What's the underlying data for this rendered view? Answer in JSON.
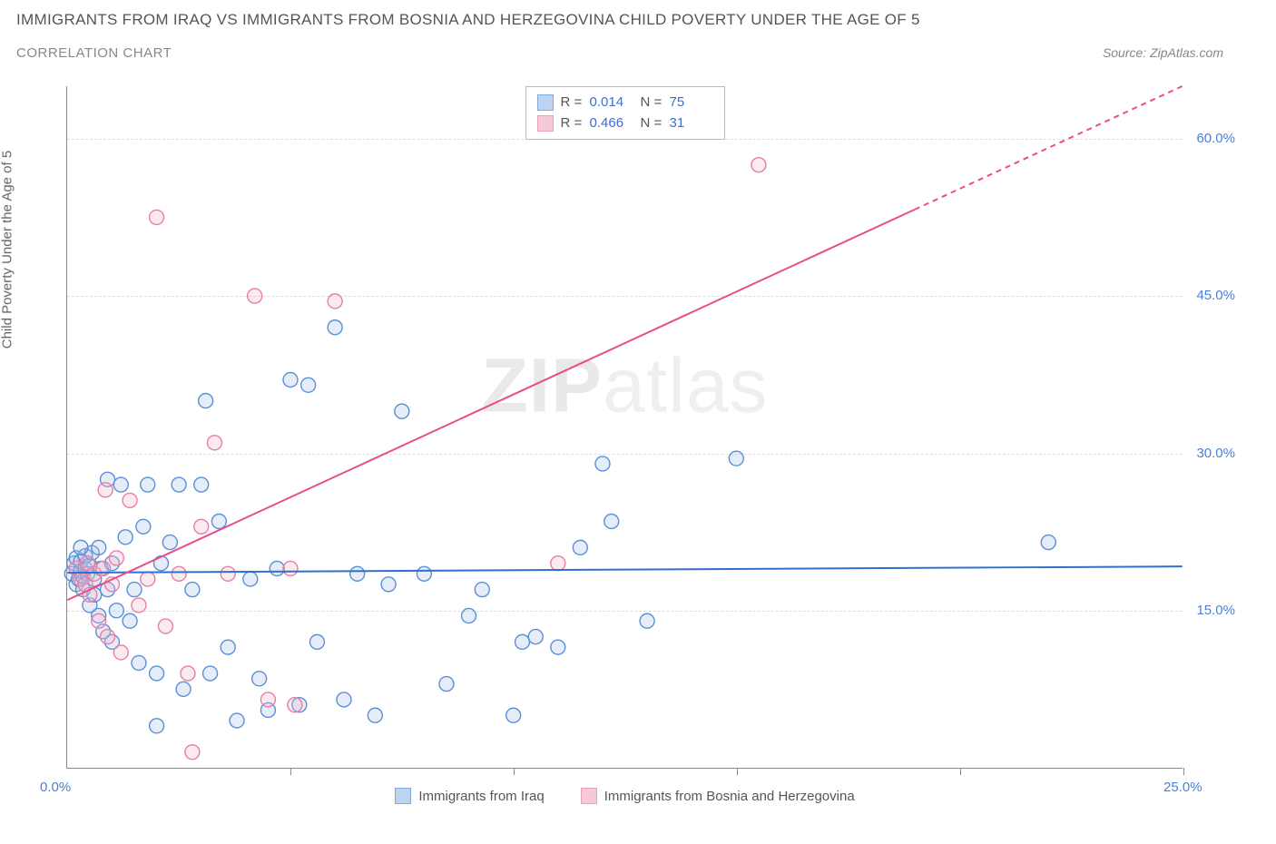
{
  "title": "IMMIGRANTS FROM IRAQ VS IMMIGRANTS FROM BOSNIA AND HERZEGOVINA CHILD POVERTY UNDER THE AGE OF 5",
  "subtitle": "CORRELATION CHART",
  "source_label": "Source:",
  "source_name": "ZipAtlas.com",
  "y_axis_label": "Child Poverty Under the Age of 5",
  "watermark_bold": "ZIP",
  "watermark_light": "atlas",
  "chart": {
    "type": "scatter",
    "xlim": [
      0,
      25
    ],
    "ylim": [
      0,
      65
    ],
    "x_ticks": [
      0,
      5,
      10,
      15,
      20,
      25
    ],
    "x_tick_labels": {
      "0": "0.0%",
      "25": "25.0%"
    },
    "y_gridlines": [
      15,
      30,
      45,
      60
    ],
    "y_tick_labels": [
      "15.0%",
      "30.0%",
      "45.0%",
      "60.0%"
    ],
    "background_color": "#ffffff",
    "grid_color": "#dddddd",
    "axis_color": "#888888",
    "tick_label_color": "#4a7fd8",
    "marker_radius": 8,
    "marker_stroke_width": 1.4,
    "marker_fill_opacity": 0.3,
    "trend_line_width": 2,
    "series": [
      {
        "key": "iraq",
        "label": "Immigrants from Iraq",
        "stroke": "#5b8fd6",
        "fill": "#a9c5ea",
        "line_color": "#2e6fd1",
        "R_label": "R =",
        "R": "0.014",
        "N_label": "N =",
        "N": "75",
        "trend": {
          "x1": 0,
          "y1": 18.6,
          "x2": 25,
          "y2": 19.2
        },
        "points": [
          [
            0.1,
            18.5
          ],
          [
            0.15,
            19.5
          ],
          [
            0.2,
            17.5
          ],
          [
            0.2,
            20.0
          ],
          [
            0.25,
            18.0
          ],
          [
            0.3,
            18.8
          ],
          [
            0.3,
            19.7
          ],
          [
            0.35,
            18.2
          ],
          [
            0.35,
            17.0
          ],
          [
            0.4,
            19.0
          ],
          [
            0.4,
            20.2
          ],
          [
            0.45,
            18.5
          ],
          [
            0.5,
            19.3
          ],
          [
            0.5,
            15.5
          ],
          [
            0.55,
            20.5
          ],
          [
            0.6,
            18.0
          ],
          [
            0.6,
            16.5
          ],
          [
            0.7,
            14.5
          ],
          [
            0.75,
            19.0
          ],
          [
            0.8,
            13.0
          ],
          [
            0.9,
            17.0
          ],
          [
            0.9,
            27.5
          ],
          [
            1.0,
            12.0
          ],
          [
            1.0,
            19.5
          ],
          [
            1.1,
            15.0
          ],
          [
            1.2,
            27.0
          ],
          [
            1.3,
            22.0
          ],
          [
            1.4,
            14.0
          ],
          [
            1.5,
            17.0
          ],
          [
            1.6,
            10.0
          ],
          [
            1.7,
            23.0
          ],
          [
            1.8,
            27.0
          ],
          [
            2.0,
            4.0
          ],
          [
            2.0,
            9.0
          ],
          [
            2.1,
            19.5
          ],
          [
            2.3,
            21.5
          ],
          [
            2.5,
            27.0
          ],
          [
            2.6,
            7.5
          ],
          [
            2.8,
            17.0
          ],
          [
            3.0,
            27.0
          ],
          [
            3.1,
            35.0
          ],
          [
            3.2,
            9.0
          ],
          [
            3.4,
            23.5
          ],
          [
            3.6,
            11.5
          ],
          [
            3.8,
            4.5
          ],
          [
            4.1,
            18.0
          ],
          [
            4.3,
            8.5
          ],
          [
            4.5,
            5.5
          ],
          [
            4.7,
            19.0
          ],
          [
            5.0,
            37.0
          ],
          [
            5.2,
            6.0
          ],
          [
            5.4,
            36.5
          ],
          [
            5.6,
            12.0
          ],
          [
            6.0,
            42.0
          ],
          [
            6.2,
            6.5
          ],
          [
            6.5,
            18.5
          ],
          [
            6.9,
            5.0
          ],
          [
            7.2,
            17.5
          ],
          [
            7.5,
            34.0
          ],
          [
            8.0,
            18.5
          ],
          [
            8.5,
            8.0
          ],
          [
            9.0,
            14.5
          ],
          [
            9.3,
            17.0
          ],
          [
            10.0,
            5.0
          ],
          [
            10.2,
            12.0
          ],
          [
            10.5,
            12.5
          ],
          [
            11.0,
            11.5
          ],
          [
            11.5,
            21.0
          ],
          [
            12.0,
            29.0
          ],
          [
            12.2,
            23.5
          ],
          [
            13.0,
            14.0
          ],
          [
            15.0,
            29.5
          ],
          [
            22.0,
            21.5
          ],
          [
            0.3,
            21.0
          ],
          [
            0.7,
            21.0
          ]
        ]
      },
      {
        "key": "bosnia",
        "label": "Immigrants from Bosnia and Herzegovina",
        "stroke": "#e67fa5",
        "fill": "#f3b8cd",
        "line_color": "#e94d89",
        "R_label": "R =",
        "R": "0.466",
        "N_label": "N =",
        "N": "31",
        "trend": {
          "x1": 0,
          "y1": 16.0,
          "x2": 25,
          "y2": 65.0
        },
        "trend_solid_until_x": 19,
        "points": [
          [
            0.2,
            19.0
          ],
          [
            0.3,
            18.0
          ],
          [
            0.4,
            17.5
          ],
          [
            0.45,
            19.5
          ],
          [
            0.5,
            16.5
          ],
          [
            0.6,
            18.5
          ],
          [
            0.7,
            14.0
          ],
          [
            0.8,
            19.0
          ],
          [
            0.85,
            26.5
          ],
          [
            0.9,
            12.5
          ],
          [
            1.0,
            17.5
          ],
          [
            1.1,
            20.0
          ],
          [
            1.2,
            11.0
          ],
          [
            1.4,
            25.5
          ],
          [
            1.6,
            15.5
          ],
          [
            1.8,
            18.0
          ],
          [
            2.0,
            52.5
          ],
          [
            2.2,
            13.5
          ],
          [
            2.5,
            18.5
          ],
          [
            2.7,
            9.0
          ],
          [
            2.8,
            1.5
          ],
          [
            3.0,
            23.0
          ],
          [
            3.3,
            31.0
          ],
          [
            3.6,
            18.5
          ],
          [
            4.2,
            45.0
          ],
          [
            4.5,
            6.5
          ],
          [
            5.0,
            19.0
          ],
          [
            5.1,
            6.0
          ],
          [
            6.0,
            44.5
          ],
          [
            11.0,
            19.5
          ],
          [
            15.5,
            57.5
          ]
        ]
      }
    ]
  }
}
